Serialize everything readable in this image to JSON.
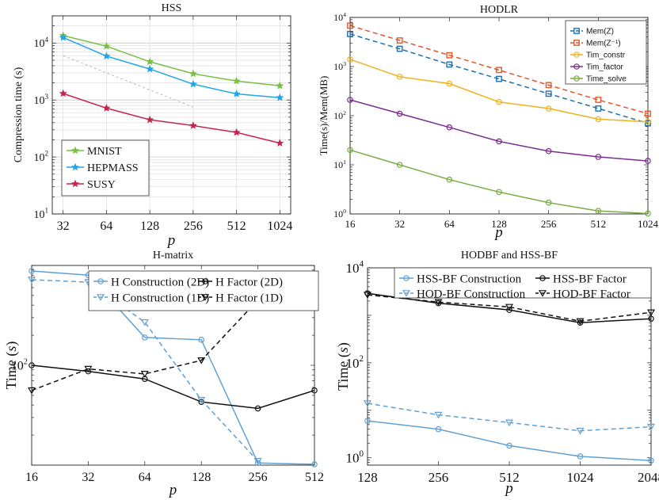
{
  "chart_data": [
    {
      "id": "hss",
      "type": "line",
      "title": "HSS",
      "xlabel": "p",
      "ylabel": "Compression time (s)",
      "x": [
        32,
        64,
        128,
        256,
        512,
        1024
      ],
      "xticks": [
        "32",
        "64",
        "128",
        "256",
        "512",
        "1024"
      ],
      "xscale": "log2",
      "yscale": "log10",
      "ylim": [
        10,
        30000
      ],
      "yticks": [
        {
          "value": 10,
          "base": "10",
          "exp": "1"
        },
        {
          "value": 100,
          "base": "10",
          "exp": "2"
        },
        {
          "value": 1000,
          "base": "10",
          "exp": "3"
        },
        {
          "value": 10000,
          "base": "10",
          "exp": "4"
        }
      ],
      "grid": true,
      "legend": "bottom-left",
      "series": [
        {
          "name": "MNIST",
          "color": "#77c043",
          "marker": "star",
          "dash": "solid",
          "values": [
            13500,
            8800,
            4700,
            2900,
            2150,
            1780
          ]
        },
        {
          "name": "HEPMASS",
          "color": "#1fa5e8",
          "marker": "star",
          "dash": "solid",
          "values": [
            12500,
            5900,
            3500,
            1900,
            1280,
            1100
          ]
        },
        {
          "name": "SUSY",
          "color": "#c5254f",
          "marker": "star",
          "dash": "solid",
          "values": [
            1300,
            720,
            450,
            355,
            270,
            175
          ]
        },
        {
          "name": "",
          "color": "#b4b4b4",
          "marker": "none",
          "dash": "3,3",
          "values": [
            6000,
            3000,
            1500,
            750,
            null,
            null
          ]
        }
      ]
    },
    {
      "id": "hodlr",
      "type": "line",
      "title": "HODLR",
      "xlabel": "p",
      "ylabel": "Time(s)/Mem(MB)",
      "x": [
        16,
        32,
        64,
        128,
        256,
        512,
        1024
      ],
      "xticks": [
        "16",
        "32",
        "64",
        "128",
        "256",
        "512",
        "1024"
      ],
      "xscale": "log2",
      "yscale": "log10",
      "ylim": [
        1,
        10000
      ],
      "yticks": [
        {
          "value": 1,
          "base": "10",
          "exp": "0"
        },
        {
          "value": 10,
          "base": "10",
          "exp": "1"
        },
        {
          "value": 100,
          "base": "10",
          "exp": "2"
        },
        {
          "value": 1000,
          "base": "10",
          "exp": "3"
        },
        {
          "value": 10000,
          "base": "10",
          "exp": "4"
        }
      ],
      "grid": false,
      "legend": "top-right",
      "series": [
        {
          "name": "Mem(Z)",
          "color": "#1d6fb0",
          "marker": "square",
          "dash": "6,4",
          "values": [
            4600,
            2300,
            1100,
            560,
            280,
            140,
            70
          ]
        },
        {
          "name": "Mem(Z⁻¹)",
          "color": "#e2562a",
          "marker": "square",
          "dash": "6,4",
          "values": [
            6800,
            3400,
            1700,
            850,
            420,
            210,
            110
          ]
        },
        {
          "name": "Tim_constr",
          "color": "#eeb21d",
          "marker": "circle",
          "dash": "solid",
          "values": [
            1400,
            620,
            450,
            190,
            140,
            85,
            75
          ]
        },
        {
          "name": "Tim_factor",
          "color": "#7b2c8e",
          "marker": "circle",
          "dash": "solid",
          "values": [
            210,
            110,
            58,
            30,
            19,
            14.5,
            12
          ]
        },
        {
          "name": "Time_solve",
          "color": "#77ac42",
          "marker": "circle",
          "dash": "solid",
          "values": [
            20,
            10,
            5,
            2.8,
            1.7,
            1.15,
            1.02
          ]
        }
      ]
    },
    {
      "id": "hmatrix",
      "type": "line",
      "title": "H-matrix",
      "xlabel": "p",
      "ylabel": "Time (s)",
      "x": [
        16,
        32,
        64,
        128,
        256,
        512
      ],
      "xticks": [
        "16",
        "32",
        "64",
        "128",
        "256",
        "512"
      ],
      "xscale": "log2",
      "yscale": "log10",
      "ylim": [
        10,
        1000
      ],
      "yticks": [
        {
          "value": 100,
          "base": "10",
          "exp": "2"
        }
      ],
      "grid": false,
      "legend": "top",
      "series": [
        {
          "name": "H Construction (2D)",
          "color": "#62a0d2",
          "marker": "circle",
          "dash": "solid",
          "values": [
            880,
            800,
            190,
            180,
            10.5,
            10.2
          ]
        },
        {
          "name": "H Factor (2D)",
          "color": "#111111",
          "marker": "circle",
          "dash": "solid",
          "values": [
            100,
            87,
            73,
            43,
            37,
            56
          ]
        },
        {
          "name": "H Construction (1D)",
          "color": "#62a0d2",
          "marker": "triangle-down",
          "dash": "6,4",
          "values": [
            720,
            680,
            270,
            45,
            11,
            null
          ]
        },
        {
          "name": "H Factor (1D)",
          "color": "#111111",
          "marker": "triangle-down",
          "dash": "6,4",
          "values": [
            56,
            92,
            82,
            112,
            450,
            null
          ]
        }
      ]
    },
    {
      "id": "hodbf",
      "type": "line",
      "title": "HODBF and HSS-BF",
      "xlabel": "p",
      "ylabel": "Time (s)",
      "x": [
        128,
        256,
        512,
        1024,
        2048
      ],
      "xticks": [
        "128",
        "256",
        "512",
        "1024",
        "2048"
      ],
      "xscale": "log2",
      "yscale": "log10",
      "ylim": [
        0.7,
        10000
      ],
      "yticks": [
        {
          "value": 1,
          "base": "10",
          "exp": "0"
        },
        {
          "value": 100,
          "base": "10",
          "exp": "2"
        },
        {
          "value": 10000,
          "base": "10",
          "exp": "4"
        }
      ],
      "grid": false,
      "legend": "top",
      "series": [
        {
          "name": "HSS-BF Construction",
          "color": "#62a0d2",
          "marker": "circle",
          "dash": "solid",
          "values": [
            6,
            4,
            1.8,
            1.07,
            0.87
          ]
        },
        {
          "name": "HSS-BF Factor",
          "color": "#111111",
          "marker": "circle",
          "dash": "solid",
          "values": [
            2900,
            1800,
            1300,
            700,
            850
          ]
        },
        {
          "name": "HOD-BF Construction",
          "color": "#62a0d2",
          "marker": "triangle-down",
          "dash": "6,4",
          "values": [
            14,
            8,
            5.5,
            3.7,
            4.5
          ]
        },
        {
          "name": "HOD-BF Factor",
          "color": "#111111",
          "marker": "triangle-down",
          "dash": "6,4",
          "values": [
            2700,
            1900,
            1500,
            750,
            1150
          ]
        }
      ]
    }
  ]
}
